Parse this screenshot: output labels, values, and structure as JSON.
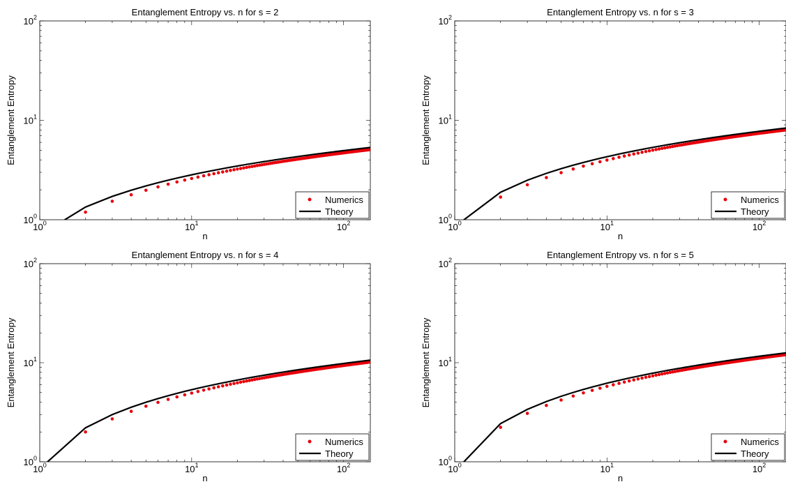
{
  "chart_data": [
    {
      "type": "scatter",
      "title": "Entanglement Entropy vs. n for s = 2",
      "xlabel": "n",
      "ylabel": "Entanglement Entropy",
      "xscale": "log",
      "yscale": "log",
      "xlim": [
        1,
        150
      ],
      "ylim": [
        1,
        100
      ],
      "xticks": [
        1,
        10,
        100
      ],
      "yticks": [
        1,
        10,
        100
      ],
      "xtick_labels": [
        {
          "base": "10",
          "exp": "0"
        },
        {
          "base": "10",
          "exp": "1"
        },
        {
          "base": "10",
          "exp": "2"
        }
      ],
      "ytick_labels": [
        {
          "base": "10",
          "exp": "0"
        },
        {
          "base": "10",
          "exp": "1"
        },
        {
          "base": "10",
          "exp": "2"
        }
      ],
      "grid": false,
      "legend": {
        "position": "lower-right",
        "entries": [
          "Numerics",
          "Theory"
        ]
      },
      "series": [
        {
          "name": "Numerics",
          "kind": "markers",
          "color": "#e8000b",
          "a": 0.925,
          "b": 0.45,
          "c": 0.2
        },
        {
          "name": "Theory",
          "kind": "line",
          "color": "#000000",
          "a": 0.925,
          "b": 0.7,
          "c": 0.0
        }
      ]
    },
    {
      "type": "scatter",
      "title": "Entanglement Entropy vs. n for s = 3",
      "xlabel": "n",
      "ylabel": "Entanglement Entropy",
      "xscale": "log",
      "yscale": "log",
      "xlim": [
        1,
        150
      ],
      "ylim": [
        1,
        100
      ],
      "xticks": [
        1,
        10,
        100
      ],
      "yticks": [
        1,
        10,
        100
      ],
      "xtick_labels": [
        {
          "base": "10",
          "exp": "0"
        },
        {
          "base": "10",
          "exp": "1"
        },
        {
          "base": "10",
          "exp": "2"
        }
      ],
      "ytick_labels": [
        {
          "base": "10",
          "exp": "0"
        },
        {
          "base": "10",
          "exp": "1"
        },
        {
          "base": "10",
          "exp": "2"
        }
      ],
      "grid": false,
      "legend": {
        "position": "lower-right",
        "entries": [
          "Numerics",
          "Theory"
        ]
      },
      "series": [
        {
          "name": "Numerics",
          "kind": "markers",
          "color": "#e8000b",
          "a": 1.5,
          "b": 0.5,
          "c": 0.3
        },
        {
          "name": "Theory",
          "kind": "line",
          "color": "#000000",
          "a": 1.5,
          "b": 0.85,
          "c": 0.0
        }
      ]
    },
    {
      "type": "scatter",
      "title": "Entanglement Entropy vs. n for s = 4",
      "xlabel": "n",
      "ylabel": "Entanglement Entropy",
      "xscale": "log",
      "yscale": "log",
      "xlim": [
        1,
        150
      ],
      "ylim": [
        1,
        100
      ],
      "xticks": [
        1,
        10,
        100
      ],
      "yticks": [
        1,
        10,
        100
      ],
      "xtick_labels": [
        {
          "base": "10",
          "exp": "0"
        },
        {
          "base": "10",
          "exp": "1"
        },
        {
          "base": "10",
          "exp": "2"
        }
      ],
      "ytick_labels": [
        {
          "base": "10",
          "exp": "0"
        },
        {
          "base": "10",
          "exp": "1"
        },
        {
          "base": "10",
          "exp": "2"
        }
      ],
      "grid": false,
      "legend": {
        "position": "lower-right",
        "entries": [
          "Numerics",
          "Theory"
        ]
      },
      "series": [
        {
          "name": "Numerics",
          "kind": "markers",
          "color": "#e8000b",
          "a": 1.95,
          "b": 0.4,
          "c": 0.5
        },
        {
          "name": "Theory",
          "kind": "line",
          "color": "#000000",
          "a": 1.95,
          "b": 0.85,
          "c": 0.0
        }
      ]
    },
    {
      "type": "scatter",
      "title": "Entanglement Entropy vs. n for s = 5",
      "xlabel": "n",
      "ylabel": "Entanglement Entropy",
      "xscale": "log",
      "yscale": "log",
      "xlim": [
        1,
        150
      ],
      "ylim": [
        1,
        100
      ],
      "xticks": [
        1,
        10,
        100
      ],
      "yticks": [
        1,
        10,
        100
      ],
      "xtick_labels": [
        {
          "base": "10",
          "exp": "0"
        },
        {
          "base": "10",
          "exp": "1"
        },
        {
          "base": "10",
          "exp": "2"
        }
      ],
      "ytick_labels": [
        {
          "base": "10",
          "exp": "0"
        },
        {
          "base": "10",
          "exp": "1"
        },
        {
          "base": "10",
          "exp": "2"
        }
      ],
      "grid": false,
      "legend": {
        "position": "lower-right",
        "entries": [
          "Numerics",
          "Theory"
        ]
      },
      "series": [
        {
          "name": "Numerics",
          "kind": "markers",
          "color": "#e8000b",
          "a": 2.35,
          "b": 0.3,
          "c": 0.6
        },
        {
          "name": "Theory",
          "kind": "line",
          "color": "#000000",
          "a": 2.35,
          "b": 0.8,
          "c": 0.0
        }
      ]
    }
  ]
}
